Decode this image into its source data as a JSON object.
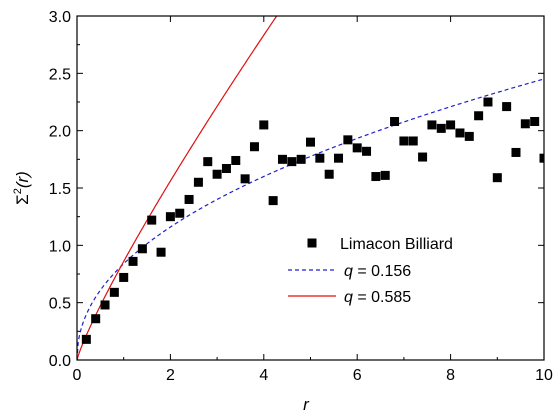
{
  "chart_data": {
    "type": "scatter",
    "xlabel": "r",
    "ylabel_base": "Σ",
    "ylabel_sup": "2",
    "ylabel_arg": "(r)",
    "xlim": [
      0,
      10
    ],
    "ylim": [
      0,
      3.0
    ],
    "x_ticks": [
      "0",
      "2",
      "4",
      "6",
      "8",
      "10"
    ],
    "y_ticks": [
      "0.0",
      "0.5",
      "1.0",
      "1.5",
      "2.0",
      "2.5",
      "3.0"
    ],
    "x_tick_values": [
      0,
      2,
      4,
      6,
      8,
      10
    ],
    "y_tick_values": [
      0,
      0.5,
      1.0,
      1.5,
      2.0,
      2.5,
      3.0
    ],
    "grid": false,
    "legend_position": "bottom-right",
    "series": [
      {
        "name": "Limacon Billiard",
        "style": "square-marker",
        "color": "#000000",
        "x": [
          0.2,
          0.4,
          0.6,
          0.8,
          1.0,
          1.2,
          1.4,
          1.6,
          1.8,
          2.0,
          2.2,
          2.4,
          2.6,
          2.8,
          3.0,
          3.2,
          3.4,
          3.6,
          3.8,
          4.0,
          4.2,
          4.4,
          4.6,
          4.8,
          5.0,
          5.2,
          5.4,
          5.6,
          5.8,
          6.0,
          6.2,
          6.4,
          6.6,
          6.8,
          7.0,
          7.2,
          7.4,
          7.6,
          7.8,
          8.0,
          8.2,
          8.4,
          8.6,
          8.8,
          9.0,
          9.2,
          9.4,
          9.6,
          9.8,
          10.0
        ],
        "y": [
          0.18,
          0.36,
          0.48,
          0.59,
          0.72,
          0.86,
          0.97,
          1.22,
          0.94,
          1.25,
          1.28,
          1.4,
          1.55,
          1.73,
          1.62,
          1.67,
          1.74,
          1.58,
          1.86,
          2.05,
          1.39,
          1.75,
          1.73,
          1.75,
          1.9,
          1.76,
          1.62,
          1.76,
          1.92,
          1.85,
          1.82,
          1.6,
          1.61,
          2.08,
          1.91,
          1.91,
          1.77,
          2.05,
          2.02,
          2.05,
          1.98,
          1.95,
          2.13,
          2.25,
          1.59,
          2.21,
          1.81,
          2.06,
          2.08,
          1.76
        ]
      },
      {
        "name_prefix": "q",
        "name_suffix": " = 0.156",
        "style": "dashed-line",
        "color": "#1f1fcf",
        "q": 0.156
      },
      {
        "name_prefix": "q",
        "name_suffix": " = 0.585",
        "style": "solid-line",
        "color": "#e01010",
        "q": 0.585
      }
    ]
  }
}
